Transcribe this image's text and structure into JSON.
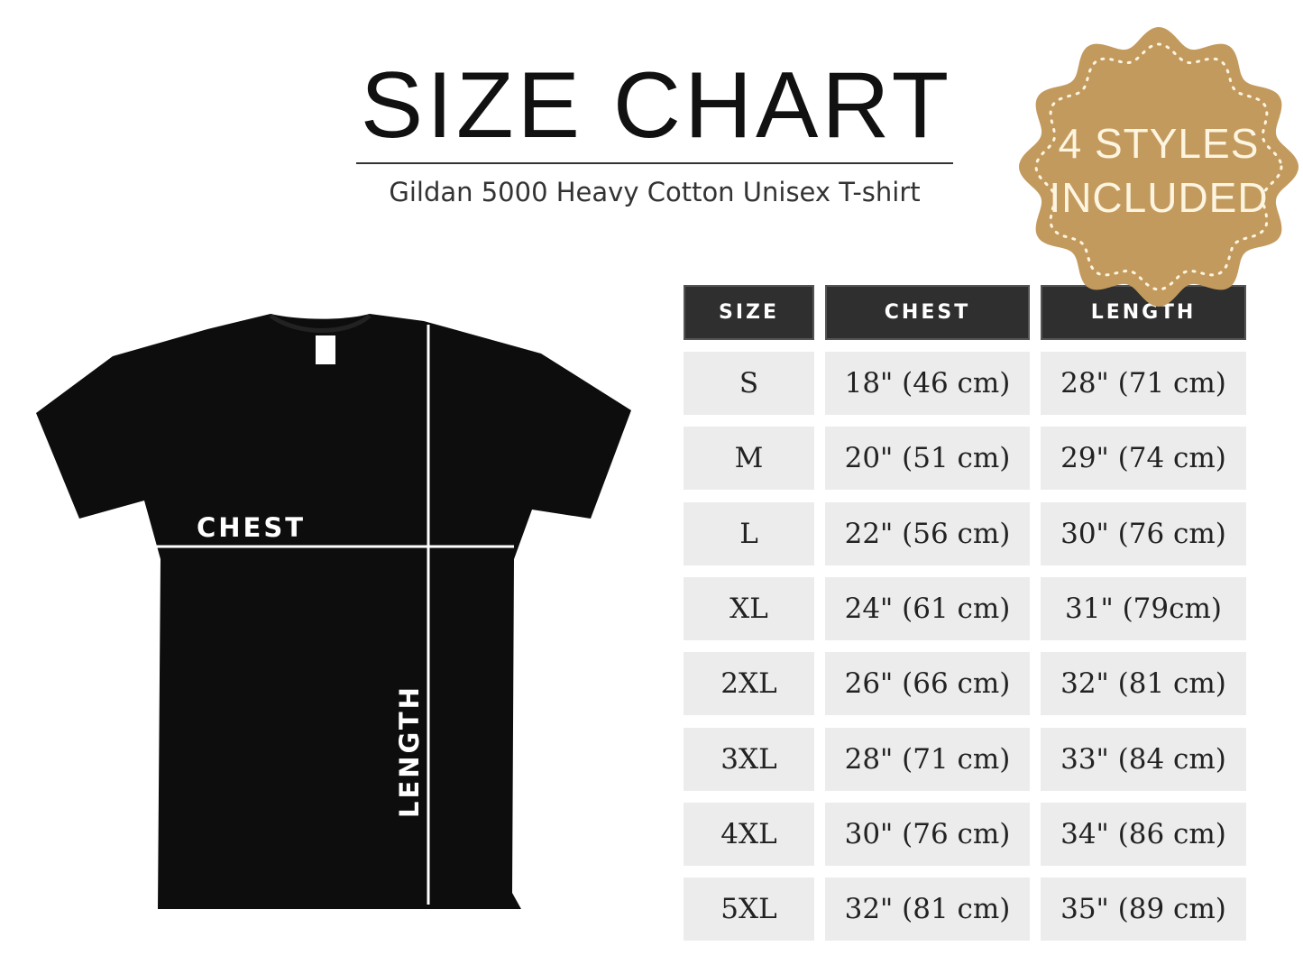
{
  "header": {
    "title": "SIZE CHART",
    "subtitle": "Gildan 5000 Heavy Cotton Unisex T-shirt"
  },
  "badge": {
    "line1": "4 STYLES",
    "line2": "INCLUDED",
    "color": "#c39a5e"
  },
  "diagram": {
    "chest_label": "CHEST",
    "length_label": "LENGTH",
    "shirt_color": "#0d0d0d"
  },
  "table": {
    "headers": [
      "SIZE",
      "CHEST",
      "LENGTH"
    ],
    "rows": [
      [
        "S",
        "18\" (46 cm)",
        "28\" (71 cm)"
      ],
      [
        "M",
        "20\" (51 cm)",
        "29\" (74 cm)"
      ],
      [
        "L",
        "22\" (56 cm)",
        "30\" (76 cm)"
      ],
      [
        "XL",
        "24\" (61 cm)",
        "31\" (79cm)"
      ],
      [
        "2XL",
        "26\" (66 cm)",
        "32\" (81 cm)"
      ],
      [
        "3XL",
        "28\" (71 cm)",
        "33\" (84 cm)"
      ],
      [
        "4XL",
        "30\" (76 cm)",
        "34\" (86 cm)"
      ],
      [
        "5XL",
        "32\" (81 cm)",
        "35\" (89 cm)"
      ]
    ]
  }
}
